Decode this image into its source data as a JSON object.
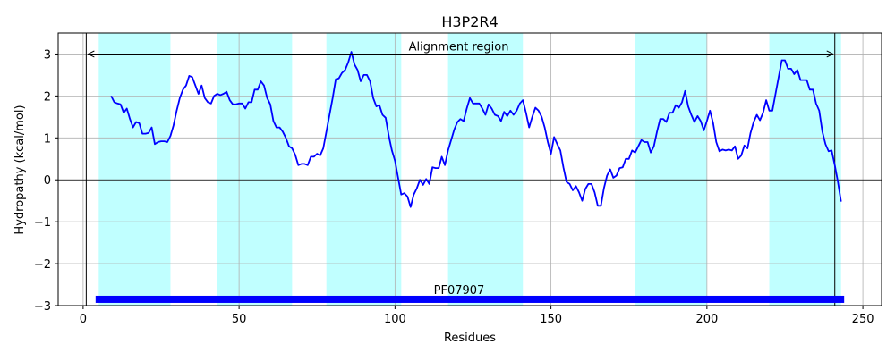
{
  "chart_data": {
    "type": "line",
    "title": "H3P2R4",
    "xlabel": "Residues",
    "ylabel": "Hydropathy (kcal/mol)",
    "xlim": [
      -8,
      256
    ],
    "ylim": [
      -3,
      3.5
    ],
    "xticks": [
      0,
      50,
      100,
      150,
      200,
      250
    ],
    "yticks": [
      -3,
      -2,
      -1,
      0,
      1,
      2,
      3
    ],
    "ytick_labels": [
      "−3",
      "−2",
      "−1",
      "0",
      "1",
      "2",
      "3"
    ],
    "grid": true,
    "zero_line": true,
    "line_color": "#0000ff",
    "band_color": "#c0ffff",
    "bands": [
      [
        5,
        28
      ],
      [
        43,
        67
      ],
      [
        78,
        102
      ],
      [
        117,
        141
      ],
      [
        177,
        200
      ],
      [
        220,
        243
      ]
    ],
    "alignment": {
      "label": "Alignment region",
      "start": 1,
      "end": 241,
      "arrow_y": 3.0
    },
    "domain": {
      "label": "PF07907",
      "start": 4,
      "end": 244,
      "y": -2.85,
      "color": "#0000ff"
    },
    "series": [
      {
        "x": [
          9,
          10,
          11,
          12,
          13,
          14,
          15,
          16,
          17,
          18,
          19,
          20,
          21,
          22,
          23,
          24,
          25,
          26,
          27,
          28,
          29,
          30,
          31,
          32,
          33,
          34,
          35,
          36,
          37,
          38,
          39,
          40,
          41,
          42,
          43,
          44,
          45,
          46,
          47,
          48,
          49,
          50,
          51,
          52,
          53,
          54,
          55,
          56,
          57,
          58,
          59,
          60,
          61,
          62,
          63,
          64,
          65,
          66,
          67,
          68,
          69,
          70,
          71,
          72,
          73,
          74,
          75,
          76,
          77,
          78,
          79,
          80,
          81,
          82,
          83,
          84,
          85,
          86,
          87,
          88,
          89,
          90,
          91,
          92,
          93,
          94,
          95,
          96,
          97,
          98,
          99,
          100,
          101,
          102,
          103,
          104,
          105,
          106,
          107,
          108,
          109,
          110,
          111,
          112,
          113,
          114,
          115,
          116,
          117,
          118,
          119,
          120,
          121,
          122,
          123,
          124,
          125,
          126,
          127,
          128,
          129,
          130,
          131,
          132,
          133,
          134,
          135,
          136,
          137,
          138,
          139,
          140,
          141,
          142,
          143,
          144,
          145,
          146,
          147,
          148,
          149,
          150,
          151,
          152,
          153,
          154,
          155,
          156,
          157,
          158,
          159,
          160,
          161,
          162,
          163,
          164,
          165,
          166,
          167,
          168,
          169,
          170,
          171,
          172,
          173,
          174,
          175,
          176,
          177,
          178,
          179,
          180,
          181,
          182,
          183,
          184,
          185,
          186,
          187,
          188,
          189,
          190,
          191,
          192,
          193,
          194,
          195,
          196,
          197,
          198,
          199,
          200,
          201,
          202,
          203,
          204,
          205,
          206,
          207,
          208,
          209,
          210,
          211,
          212,
          213,
          214,
          215,
          216,
          217,
          218,
          219,
          220,
          221,
          222,
          223,
          224,
          225,
          226,
          227,
          228,
          229,
          230,
          231,
          232,
          233,
          234,
          235,
          236,
          237,
          238,
          239,
          240,
          241,
          242,
          243
        ],
        "y": [
          2.0,
          1.85,
          1.82,
          1.8,
          1.6,
          1.7,
          1.45,
          1.25,
          1.38,
          1.35,
          1.1,
          1.1,
          1.12,
          1.25,
          0.85,
          0.9,
          0.92,
          0.92,
          0.9,
          1.05,
          1.3,
          1.65,
          1.95,
          2.15,
          2.25,
          2.48,
          2.45,
          2.25,
          2.05,
          2.25,
          1.95,
          1.85,
          1.82,
          2.0,
          2.05,
          2.02,
          2.05,
          2.1,
          1.9,
          1.8,
          1.8,
          1.82,
          1.82,
          1.7,
          1.85,
          1.85,
          2.15,
          2.15,
          2.35,
          2.25,
          1.95,
          1.8,
          1.4,
          1.25,
          1.25,
          1.15,
          1.0,
          0.8,
          0.75,
          0.6,
          0.35,
          0.38,
          0.38,
          0.35,
          0.55,
          0.55,
          0.62,
          0.58,
          0.75,
          1.15,
          1.55,
          1.95,
          2.4,
          2.42,
          2.55,
          2.62,
          2.8,
          3.05,
          2.75,
          2.62,
          2.35,
          2.5,
          2.5,
          2.35,
          1.95,
          1.75,
          1.78,
          1.55,
          1.48,
          1.05,
          0.7,
          0.45,
          0.05,
          -0.35,
          -0.32,
          -0.4,
          -0.65,
          -0.35,
          -0.2,
          0.0,
          -0.12,
          0.02,
          -0.1,
          0.3,
          0.28,
          0.28,
          0.55,
          0.35,
          0.7,
          0.95,
          1.2,
          1.38,
          1.45,
          1.4,
          1.7,
          1.95,
          1.82,
          1.82,
          1.82,
          1.7,
          1.55,
          1.8,
          1.7,
          1.55,
          1.52,
          1.4,
          1.62,
          1.52,
          1.65,
          1.55,
          1.65,
          1.82,
          1.9,
          1.6,
          1.25,
          1.5,
          1.72,
          1.65,
          1.5,
          1.25,
          0.9,
          0.62,
          1.02,
          0.85,
          0.7,
          0.3,
          -0.05,
          -0.1,
          -0.25,
          -0.15,
          -0.3,
          -0.5,
          -0.22,
          -0.1,
          -0.1,
          -0.3,
          -0.62,
          -0.62,
          -0.2,
          0.1,
          0.25,
          0.05,
          0.1,
          0.28,
          0.3,
          0.5,
          0.5,
          0.7,
          0.65,
          0.8,
          0.95,
          0.9,
          0.9,
          0.65,
          0.8,
          1.15,
          1.45,
          1.45,
          1.38,
          1.6,
          1.6,
          1.78,
          1.72,
          1.85,
          2.12,
          1.75,
          1.55,
          1.38,
          1.52,
          1.4,
          1.18,
          1.4,
          1.65,
          1.35,
          0.9,
          0.68,
          0.72,
          0.7,
          0.72,
          0.7,
          0.8,
          0.5,
          0.58,
          0.82,
          0.75,
          1.12,
          1.38,
          1.55,
          1.42,
          1.6,
          1.9,
          1.65,
          1.65,
          2.05,
          2.45,
          2.85,
          2.85,
          2.65,
          2.65,
          2.52,
          2.62,
          2.38,
          2.38,
          2.38,
          2.15,
          2.15,
          1.82,
          1.65,
          1.15,
          0.85,
          0.68,
          0.7,
          0.35,
          -0.05,
          -0.52
        ]
      }
    ]
  }
}
